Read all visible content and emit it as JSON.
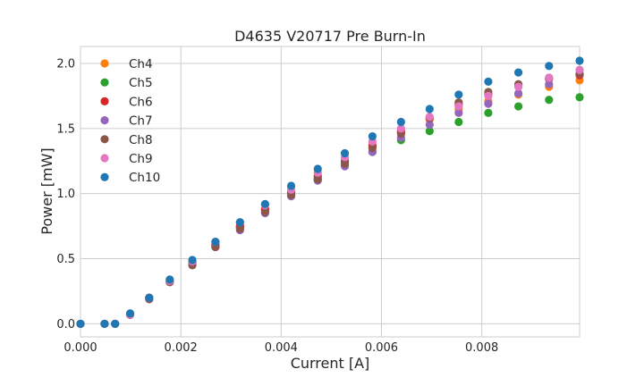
{
  "chart_data": {
    "type": "scatter",
    "title": "D4635 V20717 Pre Burn-In",
    "xlabel": "Current [A]",
    "ylabel": "Power [mW]",
    "xlim": [
      0,
      0.00995
    ],
    "ylim": [
      -0.1,
      2.13
    ],
    "x_ticks": [
      0.0,
      0.002,
      0.004,
      0.006,
      0.008
    ],
    "x_tick_labels": [
      "0.000",
      "0.002",
      "0.004",
      "0.006",
      "0.008"
    ],
    "y_ticks": [
      0.0,
      0.5,
      1.0,
      1.5,
      2.0
    ],
    "y_tick_labels": [
      "0.0",
      "0.5",
      "1.0",
      "1.5",
      "2.0"
    ],
    "grid": true,
    "legend_position": "top-left",
    "x": [
      0.0,
      0.00048,
      0.00069,
      0.00099,
      0.00137,
      0.00178,
      0.00223,
      0.00269,
      0.00318,
      0.00368,
      0.0042,
      0.00473,
      0.00527,
      0.00582,
      0.00639,
      0.00696,
      0.00754,
      0.00813,
      0.00873,
      0.00934,
      0.00995
    ],
    "series": [
      {
        "name": "Ch4",
        "color": "#ff7f0e",
        "values": [
          0.0,
          0.0,
          0.0,
          0.07,
          0.2,
          0.33,
          0.47,
          0.61,
          0.75,
          0.88,
          1.01,
          1.14,
          1.25,
          1.36,
          1.47,
          1.57,
          1.65,
          1.71,
          1.76,
          1.82,
          1.87
        ]
      },
      {
        "name": "Ch5",
        "color": "#2ca02c",
        "values": [
          0.0,
          0.0,
          0.0,
          0.07,
          0.2,
          0.33,
          0.47,
          0.6,
          0.74,
          0.87,
          0.99,
          1.11,
          1.22,
          1.32,
          1.41,
          1.48,
          1.55,
          1.62,
          1.67,
          1.72,
          1.74
        ]
      },
      {
        "name": "Ch6",
        "color": "#d62728",
        "values": [
          0.0,
          0.0,
          0.0,
          0.07,
          0.2,
          0.33,
          0.47,
          0.61,
          0.75,
          0.88,
          1.01,
          1.13,
          1.25,
          1.37,
          1.48,
          1.58,
          1.68,
          1.76,
          1.83,
          1.88,
          1.91
        ]
      },
      {
        "name": "Ch7",
        "color": "#9467bd",
        "values": [
          0.0,
          0.0,
          0.0,
          0.07,
          0.19,
          0.32,
          0.46,
          0.59,
          0.72,
          0.85,
          0.98,
          1.1,
          1.21,
          1.32,
          1.43,
          1.53,
          1.62,
          1.69,
          1.77,
          1.84,
          1.92
        ]
      },
      {
        "name": "Ch8",
        "color": "#8c564b",
        "values": [
          0.0,
          0.0,
          0.0,
          0.07,
          0.19,
          0.32,
          0.45,
          0.59,
          0.73,
          0.86,
          0.99,
          1.11,
          1.23,
          1.35,
          1.46,
          1.58,
          1.7,
          1.78,
          1.84,
          1.89,
          1.92
        ]
      },
      {
        "name": "Ch9",
        "color": "#e377c2",
        "values": [
          0.0,
          0.0,
          0.0,
          0.07,
          0.2,
          0.33,
          0.48,
          0.63,
          0.78,
          0.91,
          1.03,
          1.16,
          1.28,
          1.4,
          1.5,
          1.59,
          1.67,
          1.75,
          1.82,
          1.89,
          1.95
        ]
      },
      {
        "name": "Ch10",
        "color": "#1f77b4",
        "values": [
          0.0,
          0.0,
          0.0,
          0.08,
          0.2,
          0.34,
          0.49,
          0.63,
          0.78,
          0.92,
          1.06,
          1.19,
          1.31,
          1.44,
          1.55,
          1.65,
          1.76,
          1.86,
          1.93,
          1.98,
          2.02
        ]
      }
    ]
  }
}
